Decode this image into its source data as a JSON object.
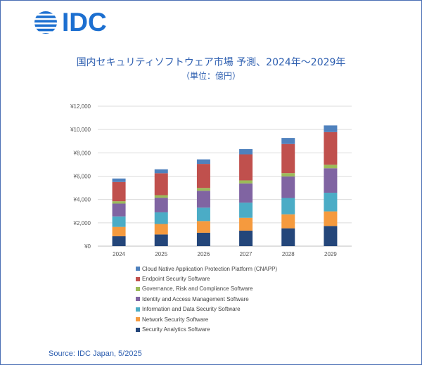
{
  "logo": {
    "text": "IDC"
  },
  "chart_data": {
    "type": "bar",
    "stacked": true,
    "title": "国内セキュリティソフトウェア市場 予測、2024年～2029年",
    "subtitle": "（単位：億円）",
    "categories": [
      "2024",
      "2025",
      "2026",
      "2027",
      "2028",
      "2029"
    ],
    "y_ticks": [
      "¥0",
      "¥2,000",
      "¥4,000",
      "¥6,000",
      "¥8,000",
      "¥10,000",
      "¥12,000"
    ],
    "ylim": [
      0,
      12000
    ],
    "grid": true,
    "legend_position": "bottom",
    "series": [
      {
        "name": "Security Analytics Software",
        "color": "#24467a",
        "values": [
          850,
          1000,
          1150,
          1330,
          1530,
          1730
        ]
      },
      {
        "name": "Network Security Software",
        "color": "#f59a3e",
        "values": [
          800,
          900,
          1000,
          1100,
          1200,
          1250
        ]
      },
      {
        "name": "Information and Data Security Software",
        "color": "#4bacc6",
        "values": [
          900,
          1000,
          1150,
          1300,
          1400,
          1600
        ]
      },
      {
        "name": "Identity and Access Management Software",
        "color": "#8064a2",
        "values": [
          1100,
          1250,
          1450,
          1650,
          1850,
          2100
        ]
      },
      {
        "name": "Governance, Risk and Compliance Software",
        "color": "#9bbb59",
        "values": [
          200,
          220,
          240,
          260,
          280,
          300
        ]
      },
      {
        "name": "Endpoint Security Software",
        "color": "#c0504d",
        "values": [
          1650,
          1880,
          2060,
          2230,
          2500,
          2800
        ]
      },
      {
        "name": "Cloud Native Application Protection Platform (CNAPP)",
        "color": "#4f81bd",
        "values": [
          300,
          340,
          390,
          450,
          520,
          570
        ]
      }
    ]
  },
  "source": "Source: IDC Japan, 5/2025"
}
